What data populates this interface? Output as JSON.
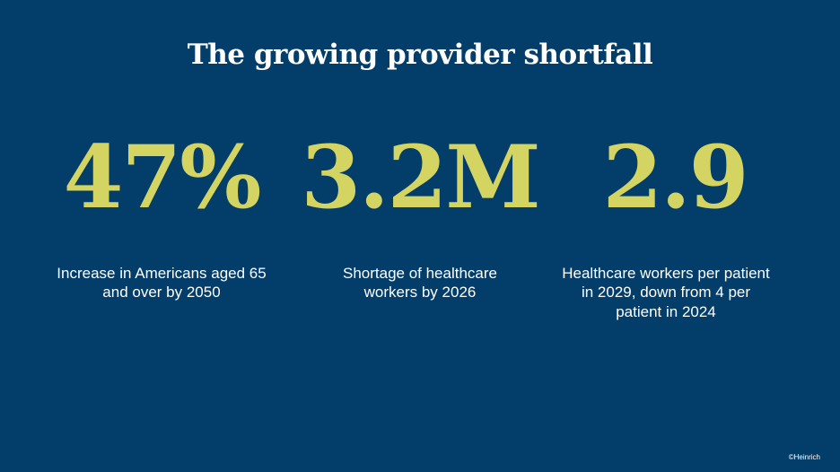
{
  "title": "The growing provider shortfall",
  "stats": [
    {
      "value": "47%",
      "caption": "Increase in Americans aged 65 and over by 2050"
    },
    {
      "value": "3.2M",
      "caption": "Shortage of healthcare workers by 2026"
    },
    {
      "value": "2.9",
      "caption": "Healthcare workers per patient in 2029, down from 4 per patient in 2024"
    }
  ],
  "credit": "©Heinrich",
  "colors": {
    "background": "#033d69",
    "accent": "#d3d461",
    "text": "#ffffff"
  }
}
